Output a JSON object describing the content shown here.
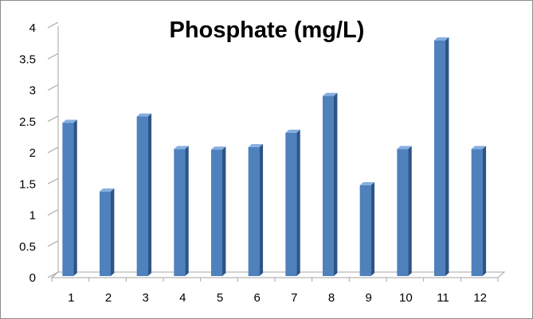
{
  "chart_data": {
    "type": "bar",
    "title": "Phosphate (mg/L)",
    "xlabel": "",
    "ylabel": "",
    "categories": [
      "1",
      "2",
      "3",
      "4",
      "5",
      "6",
      "7",
      "8",
      "9",
      "10",
      "11",
      "12"
    ],
    "values": [
      2.48,
      1.38,
      2.58,
      2.06,
      2.05,
      2.09,
      2.32,
      2.91,
      1.48,
      2.06,
      3.8,
      2.06
    ],
    "ylim": [
      0,
      4
    ],
    "yticks": [
      "0",
      "0.5",
      "1",
      "1.5",
      "2",
      "2.5",
      "3",
      "3.5",
      "4"
    ],
    "grid": false,
    "legend": "none",
    "style": "3d-column"
  },
  "colors": {
    "bar_front": "#4f81bd",
    "bar_side": "#2c5487",
    "bar_top": "#86aee0",
    "axis": "#a6a6a6"
  }
}
